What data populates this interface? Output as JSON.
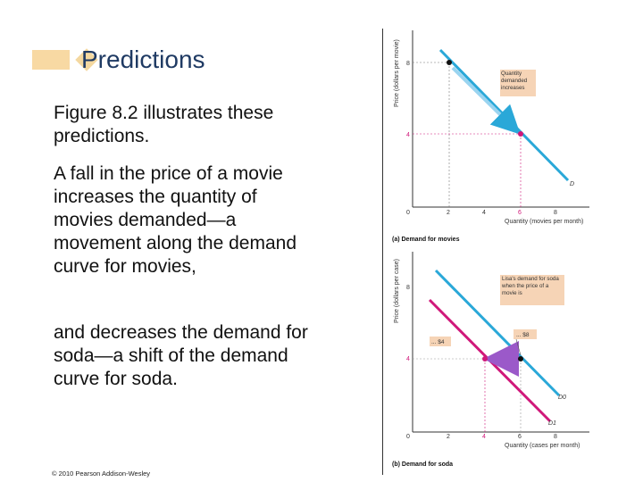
{
  "slide": {
    "title": "Predictions",
    "paragraphs": [
      "Figure 8.2 illustrates these predictions.",
      "A fall in the price of a movie increases the quantity of movies demanded—a movement along the demand curve for movies,",
      "and decreases the demand for soda—a shift of the demand curve for soda."
    ],
    "copyright": "© 2010 Pearson Addison-Wesley"
  },
  "figure_a": {
    "caption": "(a) Demand for movies",
    "ylabel": "Price (dollars per movie)",
    "xlabel": "Quantity (movies per month)",
    "y_ticks": [
      "8",
      "4"
    ],
    "x_ticks": [
      "0",
      "2",
      "4",
      "6",
      "8"
    ],
    "curve_label": "D",
    "callout": "Quantity demanded increases"
  },
  "figure_b": {
    "caption": "(b) Demand for soda",
    "ylabel": "Price (dollars per case)",
    "xlabel": "Quantity (cases per month)",
    "y_ticks": [
      "8",
      "4"
    ],
    "x_ticks": [
      "0",
      "2",
      "4",
      "6",
      "8"
    ],
    "curve_label_0": "D0",
    "curve_label_1": "D1",
    "callout": "Lisa's demand for soda when the price of a movie is",
    "tag_8": "... $8",
    "tag_4": "... $4"
  },
  "colors": {
    "title": "#1f3a63",
    "accent_bar": "#f8d9a3",
    "demand_blue": "#2aa8d8",
    "demand_magenta": "#d0187a",
    "callout_bg": "#f6d4b6"
  }
}
